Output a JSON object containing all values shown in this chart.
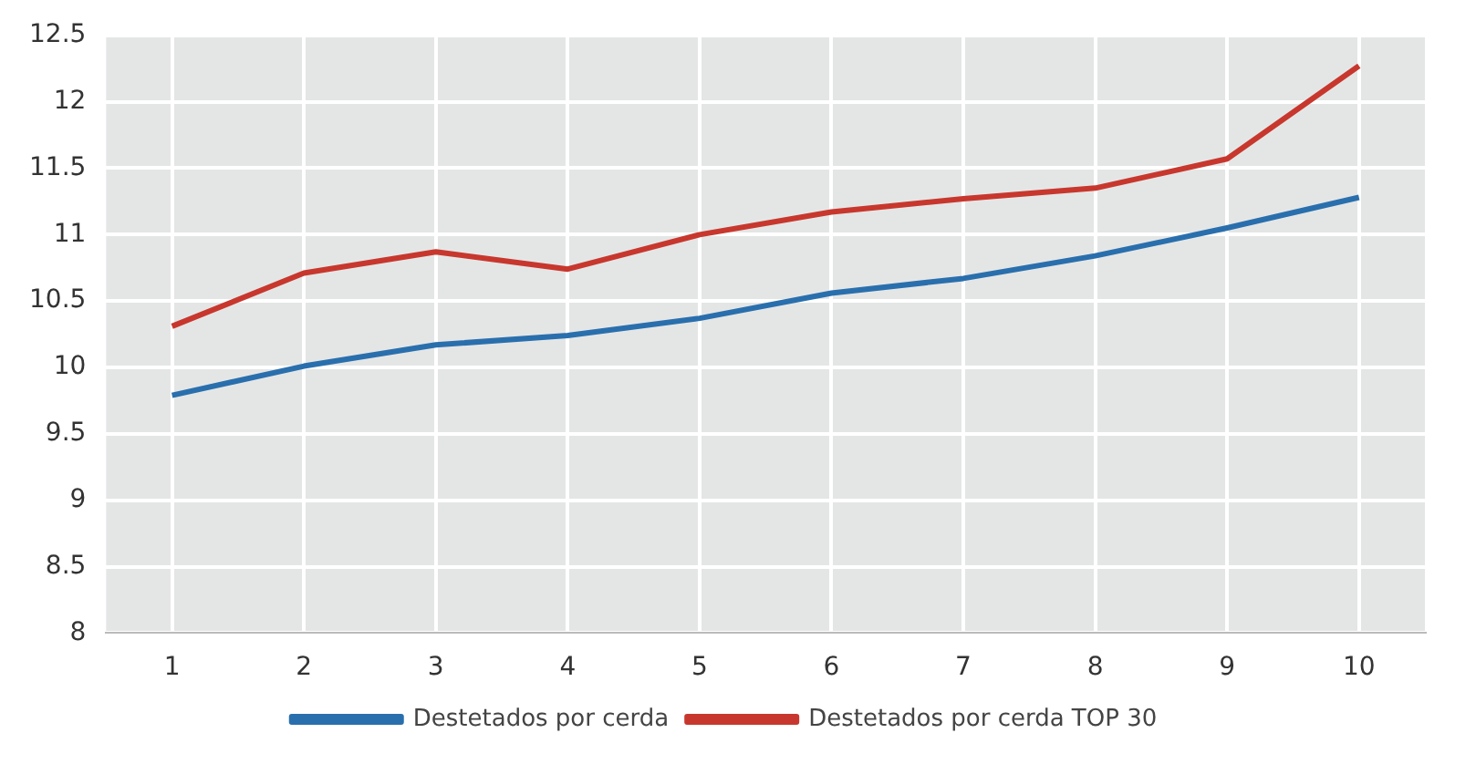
{
  "chart_data": {
    "type": "line",
    "categories": [
      "1",
      "2",
      "3",
      "4",
      "5",
      "6",
      "7",
      "8",
      "9",
      "10"
    ],
    "series": [
      {
        "name": "Destetados por cerda",
        "color": "#2a6fad",
        "values": [
          9.79,
          10.01,
          10.17,
          10.24,
          10.37,
          10.56,
          10.67,
          10.84,
          11.05,
          11.28
        ]
      },
      {
        "name": "Destetados por cerda TOP 30",
        "color": "#c8372d",
        "values": [
          10.31,
          10.71,
          10.87,
          10.74,
          11.0,
          11.17,
          11.27,
          11.35,
          11.57,
          12.27
        ]
      }
    ],
    "ylim": [
      8,
      12.5
    ],
    "yticks": [
      8,
      8.5,
      9,
      9.5,
      10,
      10.5,
      11,
      11.5,
      12,
      12.5
    ],
    "grid": true,
    "legend": "bottom",
    "marker": "none",
    "line_style": "solid"
  }
}
